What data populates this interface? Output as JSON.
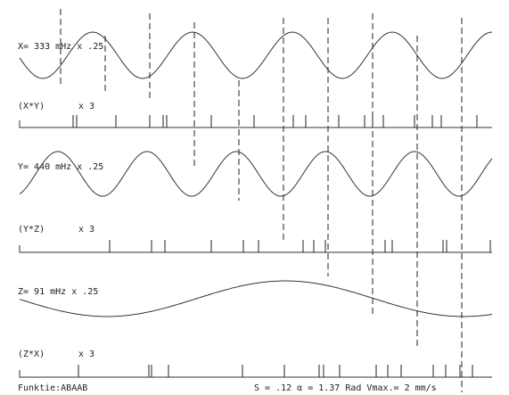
{
  "traces": [
    {
      "label": "X= 333 mHz x .25"
    },
    {
      "label": "(X*Y)",
      "gain": "x 3"
    },
    {
      "label": "Y= 440 mHz x .25"
    },
    {
      "label": "(Y*Z)",
      "gain": "x 3"
    },
    {
      "label": "Z= 91 mHz x .25"
    },
    {
      "label": "(Z*X)",
      "gain": "x 3"
    }
  ],
  "footer": {
    "function": "Funktie:ABAAB",
    "parameters": "S = .12  α = 1.37 Rad  Vmax.= 2 mm/s"
  }
}
